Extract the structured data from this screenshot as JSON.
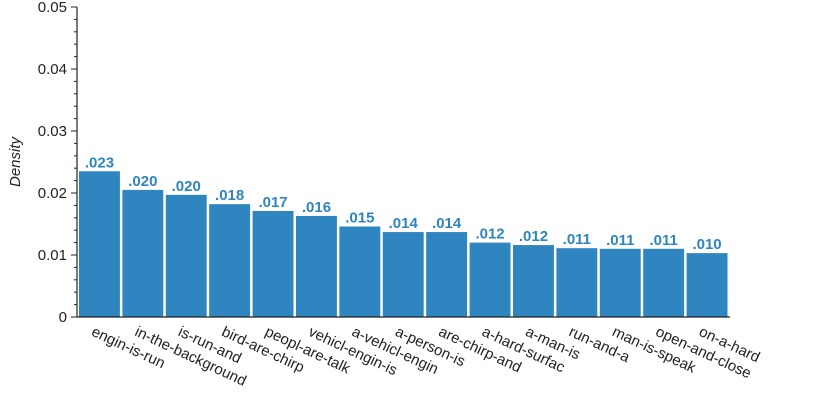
{
  "chart_data": {
    "type": "bar",
    "categories": [
      "engin-is-run",
      "in-the-background",
      "is-run-and",
      "bird-are-chirp",
      "peopl-are-talk",
      "vehicl-engin-is",
      "a-vehicl-engin",
      "a-person-is",
      "are-chirp-and",
      "a-hard-surfac",
      "a-man-is",
      "run-and-a",
      "man-is-speak",
      "open-and-close",
      "on-a-hard"
    ],
    "values": [
      0.0235,
      0.0205,
      0.0197,
      0.0182,
      0.0171,
      0.0163,
      0.0146,
      0.0137,
      0.0137,
      0.012,
      0.0116,
      0.0111,
      0.011,
      0.011,
      0.0103
    ],
    "value_labels": [
      ".023",
      ".020",
      ".020",
      ".018",
      ".017",
      ".016",
      ".015",
      ".014",
      ".014",
      ".012",
      ".012",
      ".011",
      ".011",
      ".011",
      ".010"
    ],
    "ylabel": "Density",
    "ylim": [
      0,
      0.05
    ],
    "yticks": [
      0,
      0.01,
      0.02,
      0.03,
      0.04,
      0.05
    ],
    "ytick_labels": [
      "0",
      "0.01",
      "0.02",
      "0.03",
      "0.04",
      "0.05"
    ],
    "grid": false,
    "colors": {
      "bar": "#2e85bf",
      "label": "#2e85bf"
    }
  }
}
